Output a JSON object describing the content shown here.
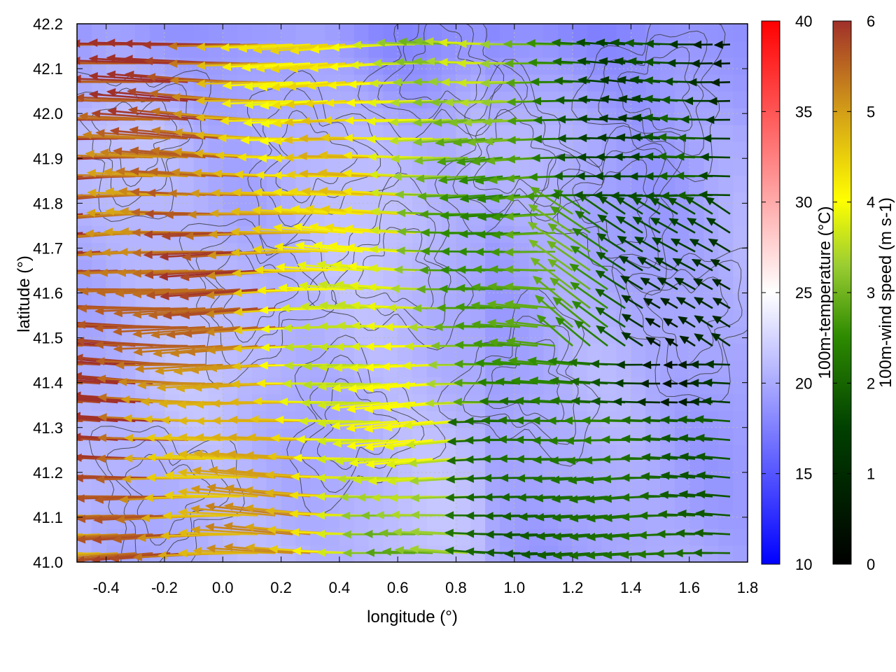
{
  "chart_data": {
    "type": "heatmap",
    "title": "",
    "xlabel": "longitude (°)",
    "ylabel": "latitude (°)",
    "xlim": [
      -0.5,
      1.8
    ],
    "ylim": [
      41.0,
      42.2
    ],
    "x_ticks": [
      "-0.4",
      "-0.2",
      "0.0",
      "0.2",
      "0.4",
      "0.6",
      "0.8",
      "1.0",
      "1.2",
      "1.4",
      "1.6",
      "1.8"
    ],
    "x_tick_values": [
      -0.4,
      -0.2,
      0.0,
      0.2,
      0.4,
      0.6,
      0.8,
      1.0,
      1.2,
      1.4,
      1.6,
      1.8
    ],
    "y_ticks": [
      "41.0",
      "41.1",
      "41.2",
      "41.3",
      "41.4",
      "41.5",
      "41.6",
      "41.7",
      "41.8",
      "41.9",
      "42.0",
      "42.1",
      "42.2"
    ],
    "y_tick_values": [
      41.0,
      41.1,
      41.2,
      41.3,
      41.4,
      41.5,
      41.6,
      41.7,
      41.8,
      41.9,
      42.0,
      42.1,
      42.2
    ],
    "grid": true,
    "layers": [
      {
        "kind": "color-map",
        "variable": "100m-temperature",
        "approx_range_degC": [
          17,
          23
        ]
      },
      {
        "kind": "contour",
        "variable": "terrain height",
        "color": "#333333"
      },
      {
        "kind": "vector-field",
        "variable": "100m-wind",
        "notes": "westward flow; strongest (~5.5-6 m/s) over west and central-west, weak (~1.5-2.5 m/s) in south-east"
      }
    ],
    "colorbars": [
      {
        "label": "100m-temperature (°C)",
        "range": [
          10,
          40
        ],
        "ticks": [
          "10",
          "15",
          "20",
          "25",
          "30",
          "35",
          "40"
        ],
        "tick_values": [
          10,
          15,
          20,
          25,
          30,
          35,
          40
        ],
        "colors": [
          "#0000ff",
          "#ffffff",
          "#ff0000"
        ]
      },
      {
        "label": "100m-wind speed (m s-1)",
        "range": [
          0,
          6
        ],
        "ticks": [
          "0",
          "1",
          "2",
          "3",
          "4",
          "5",
          "6"
        ],
        "tick_values": [
          0,
          1,
          2,
          3,
          4,
          5,
          6
        ],
        "colors": [
          "#000000",
          "#006400",
          "#7cb800",
          "#ffff00",
          "#e0a000",
          "#a52a2a"
        ]
      }
    ]
  }
}
